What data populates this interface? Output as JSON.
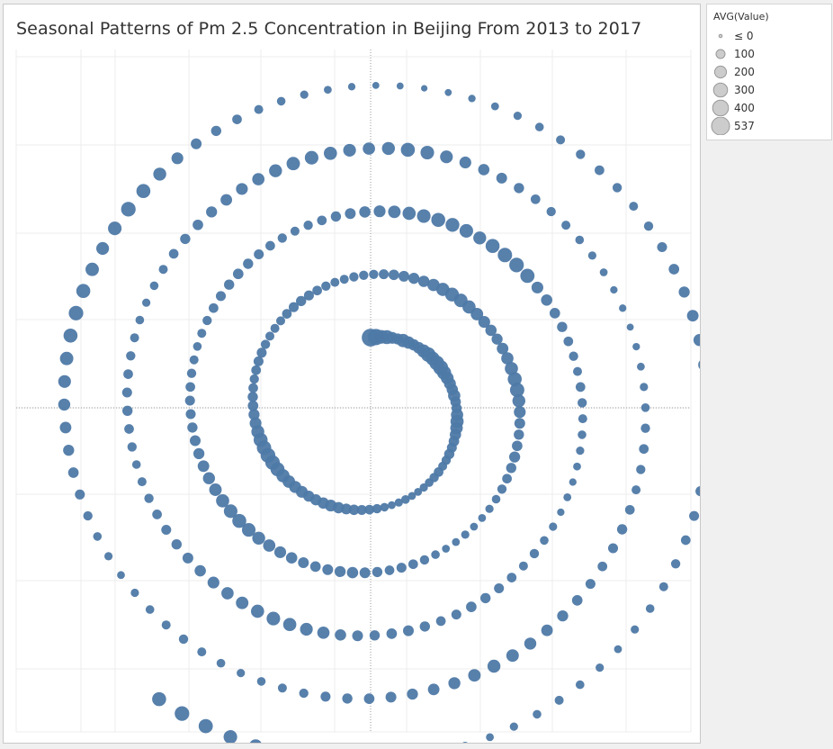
{
  "chart": {
    "title": "Seasonal Patterns of Pm 2.5 Concentration in Beijing From 2013 to 2017"
  },
  "legend": {
    "title": "AVG(Value)",
    "items": [
      {
        "label": "≤ 0",
        "value": 0
      },
      {
        "label": "100",
        "value": 100
      },
      {
        "label": "200",
        "value": 200
      },
      {
        "label": "300",
        "value": 300
      },
      {
        "label": "400",
        "value": 400
      },
      {
        "label": "537",
        "value": 537
      }
    ]
  },
  "colors": {
    "mark": "#4e79a7",
    "legend_mark": "#cccccc",
    "legend_mark_stroke": "#999999",
    "grid": "#ececec",
    "axis": "#9a9a9a"
  },
  "chart_data": {
    "type": "scatter",
    "layout": "radial spiral (radius grows with time; angle = time of year, clockwise from top)",
    "series": [
      {
        "values": [
          520,
          430,
          280,
          300,
          200,
          170,
          270,
          220,
          180,
          190,
          260,
          330,
          290,
          340,
          350,
          300,
          240,
          200,
          180,
          220,
          150,
          140,
          220,
          260,
          230,
          180,
          150,
          130,
          140,
          110,
          100,
          120,
          110,
          90,
          80,
          70,
          70,
          90,
          80,
          70,
          90,
          110,
          120,
          130,
          150,
          160,
          180,
          200,
          180,
          170,
          170,
          200,
          210,
          230,
          260,
          300,
          330,
          340,
          320,
          300,
          250,
          200,
          170,
          150,
          140,
          120,
          110,
          120,
          130,
          130,
          110,
          100,
          100,
          100,
          120,
          130,
          140,
          130,
          120,
          110,
          100,
          100,
          110,
          110,
          110,
          130,
          150,
          160,
          170,
          180,
          220,
          260,
          290,
          280,
          260,
          230,
          200,
          180,
          170,
          190,
          220,
          260,
          300,
          320,
          250,
          200,
          160,
          140,
          150,
          170,
          140,
          120,
          110,
          90,
          80,
          70,
          70,
          80,
          70,
          70,
          90,
          110,
          120,
          130,
          120,
          140,
          160,
          180,
          170,
          160,
          150,
          160,
          180,
          200,
          220,
          250,
          280,
          300,
          280,
          260,
          230,
          210,
          190,
          170,
          160,
          140,
          130,
          130,
          120,
          110,
          100,
          90,
          100,
          110,
          120,
          130,
          140,
          150,
          140,
          130,
          120,
          110,
          100,
          110,
          120,
          140,
          160,
          180,
          200,
          230,
          260,
          280,
          300,
          290,
          280,
          250,
          300,
          320,
          330,
          310,
          200,
          180,
          150,
          140,
          120,
          110,
          100,
          120,
          110,
          100,
          90,
          80,
          70,
          60,
          70,
          60,
          80,
          90,
          110,
          100,
          120,
          130,
          140,
          150,
          130,
          120,
          140,
          160,
          150,
          140,
          160,
          180,
          220,
          240,
          260,
          280,
          260,
          230,
          220,
          200,
          180,
          160,
          140,
          130,
          120,
          110,
          100,
          90,
          110,
          120,
          140,
          130,
          120,
          110,
          100,
          90,
          80,
          90,
          100,
          120,
          140,
          150,
          170,
          190,
          200,
          220,
          250,
          270,
          280,
          260,
          240,
          220,
          250,
          300,
          280,
          240,
          200,
          180,
          160,
          140,
          120,
          110,
          100,
          90,
          80,
          70,
          60,
          60,
          50,
          60,
          70,
          80,
          90,
          110,
          120,
          110,
          100,
          120,
          140,
          130,
          120,
          130,
          150,
          170,
          190,
          210,
          230,
          250,
          230,
          210,
          190,
          170,
          160,
          150,
          140,
          130,
          110,
          100,
          90,
          80,
          90,
          100,
          110,
          100,
          90,
          80,
          70,
          80,
          90,
          110,
          130,
          150,
          170,
          190,
          210,
          240,
          270,
          300,
          330,
          300,
          270,
          240,
          280,
          330,
          300,
          250,
          200,
          160,
          140,
          120,
          100,
          90,
          80,
          70,
          60,
          50,
          50,
          40,
          50,
          60,
          70,
          80,
          90,
          100,
          110,
          120,
          110,
          100,
          110,
          130,
          150,
          170,
          190,
          210,
          220,
          200,
          180,
          160,
          150,
          140,
          130,
          120,
          110,
          100,
          90,
          80,
          70,
          80,
          90,
          100,
          90,
          80,
          70,
          80,
          90,
          110,
          130,
          150,
          170,
          190,
          220,
          250,
          280,
          310,
          330,
          300
        ]
      }
    ],
    "x_axis": {
      "tick_labels": []
    },
    "y_axis": {
      "tick_labels": []
    },
    "grid": true
  }
}
